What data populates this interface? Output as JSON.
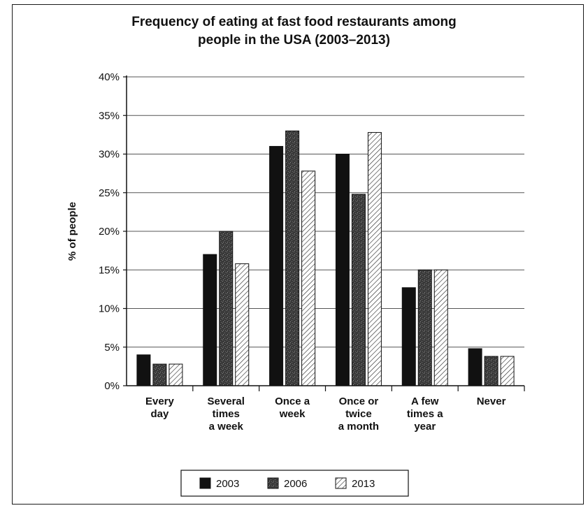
{
  "chart_data": {
    "type": "bar",
    "title_lines": [
      "Frequency of eating at fast food restaurants among",
      "people in the USA (2003–2013)"
    ],
    "xlabel": "",
    "ylabel": "% of people",
    "ylim": [
      0,
      40
    ],
    "yticks": [
      "0%",
      "5%",
      "10%",
      "15%",
      "20%",
      "25%",
      "30%",
      "35%",
      "40%"
    ],
    "categories": [
      [
        "Every",
        "day"
      ],
      [
        "Several",
        "times",
        "a week"
      ],
      [
        "Once a",
        "week"
      ],
      [
        "Once or",
        "twice",
        "a month"
      ],
      [
        "A few",
        "times a",
        "year"
      ],
      [
        "Never"
      ]
    ],
    "series": [
      {
        "name": "2003",
        "values": [
          4,
          17,
          31,
          30,
          12.7,
          4.8
        ],
        "pattern": "solid",
        "color": "#111111"
      },
      {
        "name": "2006",
        "values": [
          2.8,
          20,
          33,
          24.8,
          15,
          3.8
        ],
        "pattern": "speckled",
        "color": "#3a3a3a"
      },
      {
        "name": "2013",
        "values": [
          2.8,
          15.8,
          27.8,
          32.8,
          15,
          3.8
        ],
        "pattern": "hatched",
        "color": "#ffffff"
      }
    ],
    "grid": true,
    "legend_position": "bottom"
  }
}
